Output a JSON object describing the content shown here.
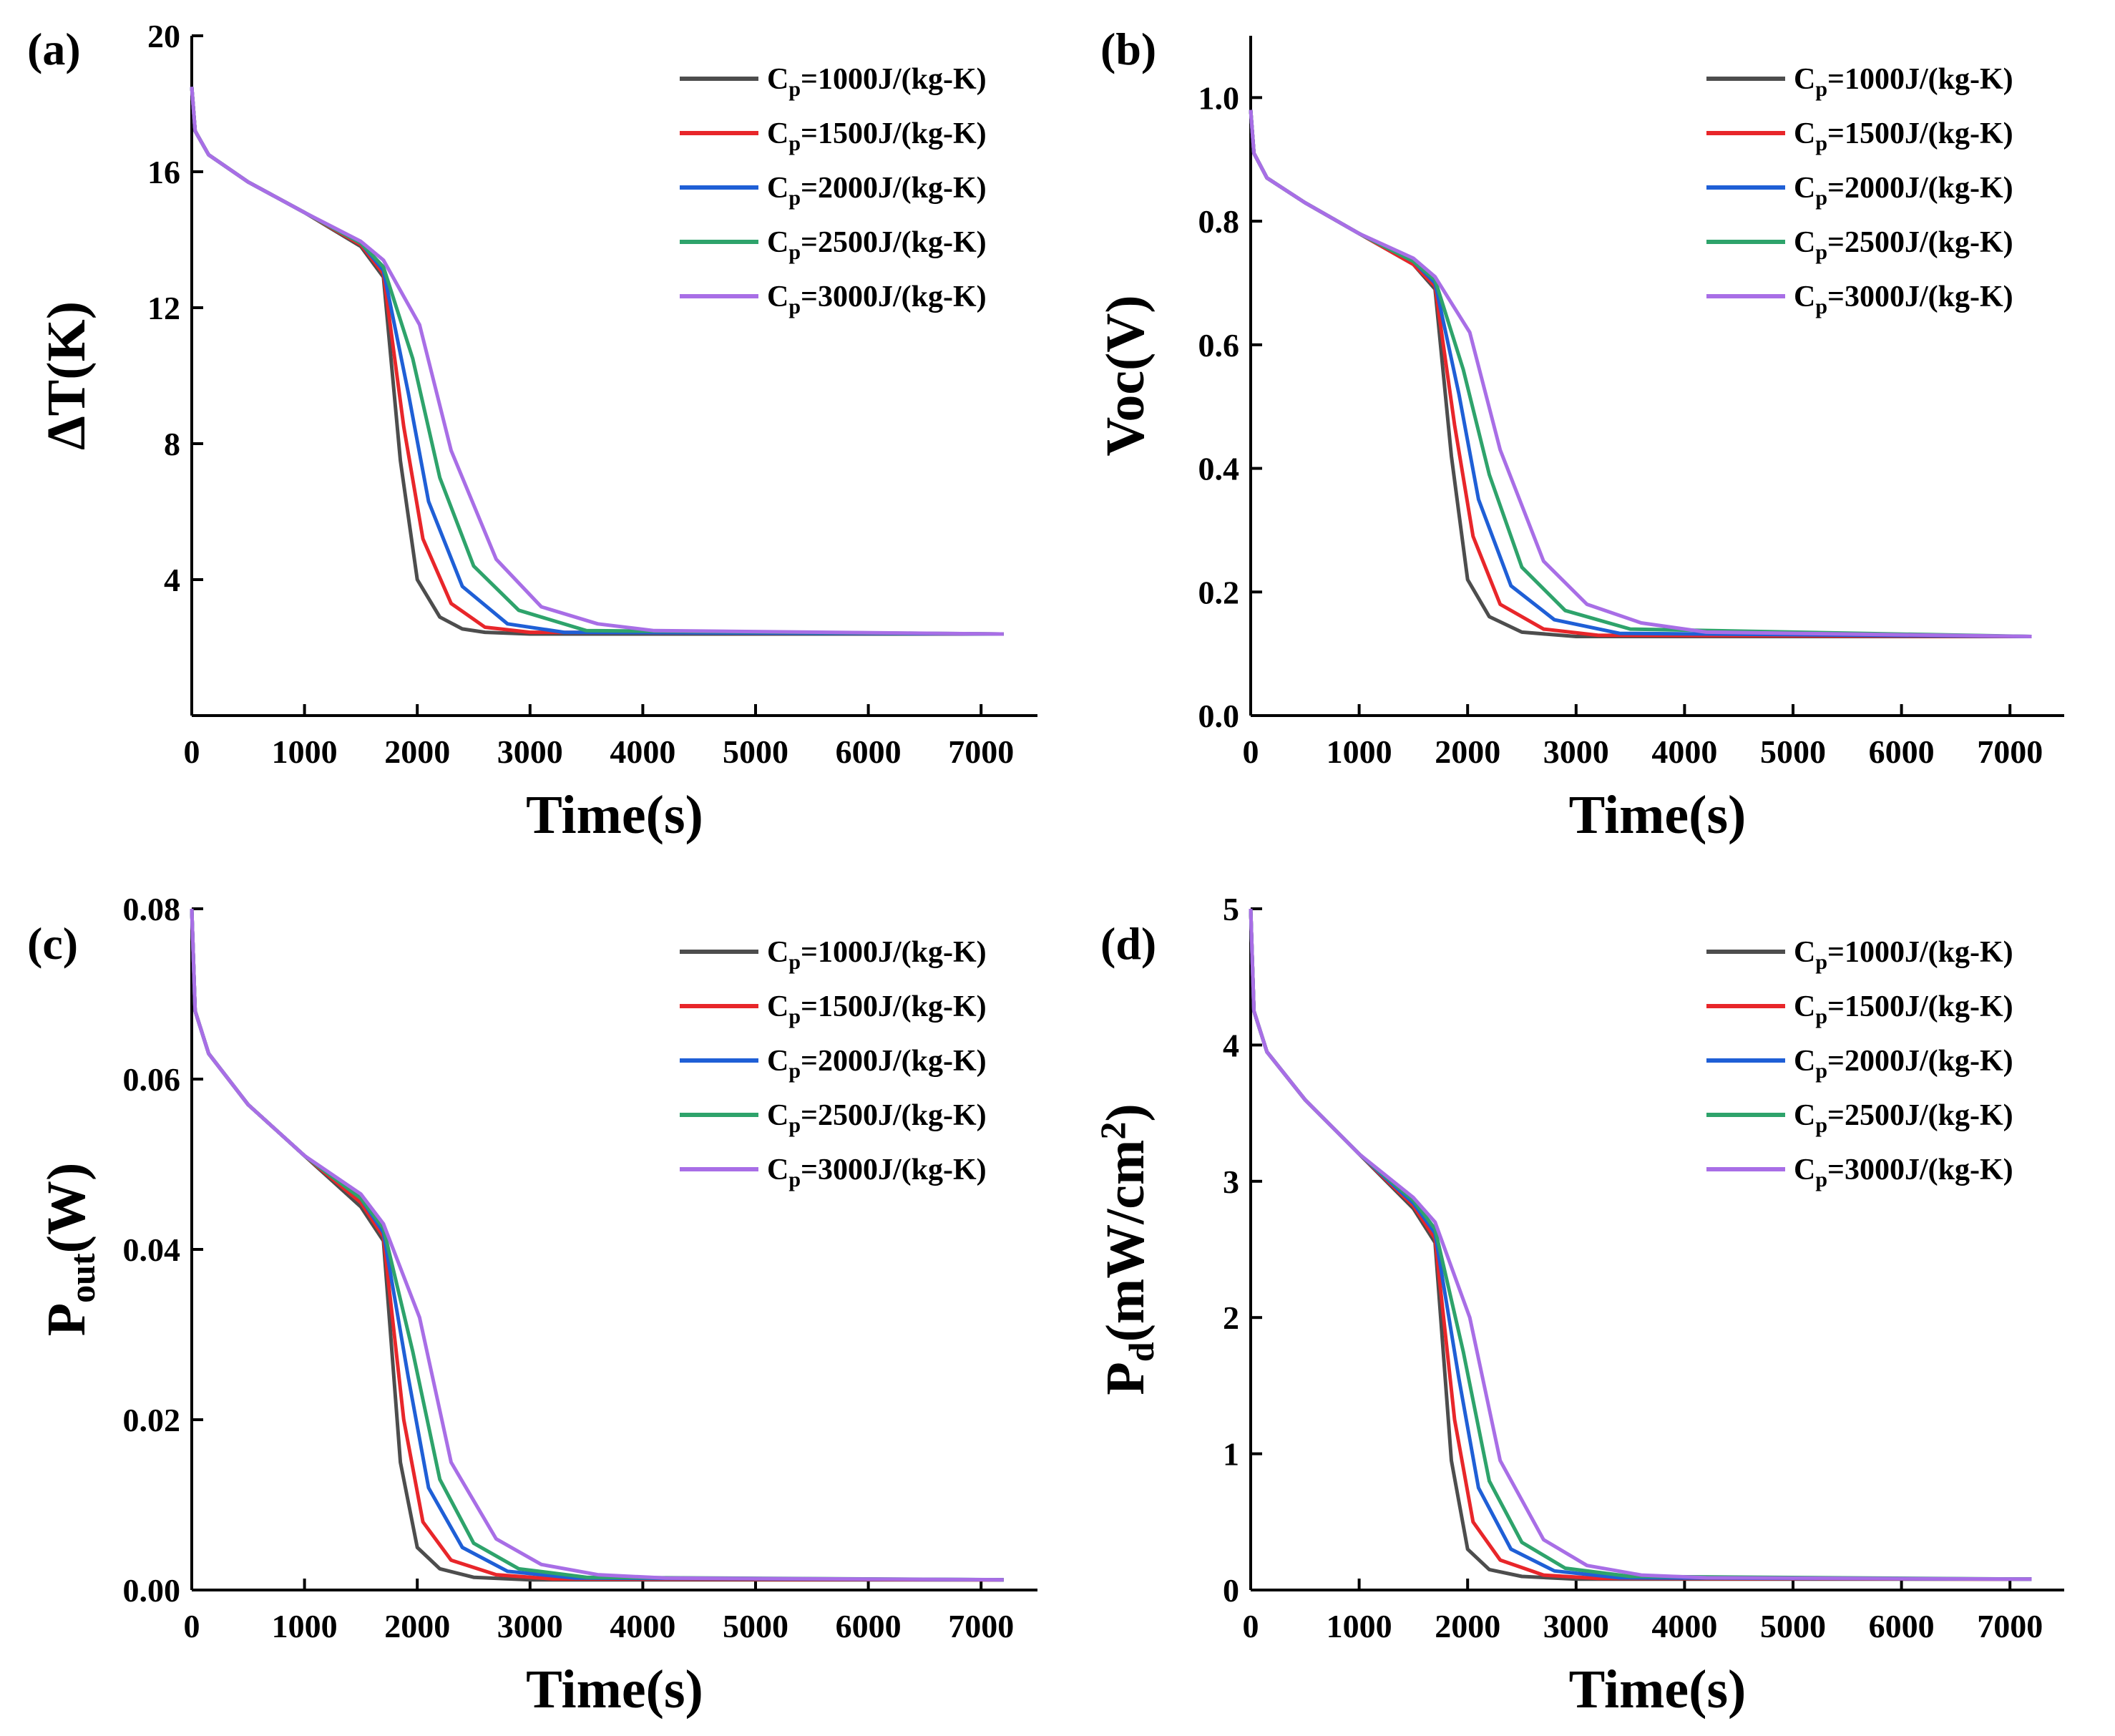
{
  "figure": {
    "panel_count": 4
  },
  "colors": {
    "axis": "#000000",
    "series": [
      "#4d4d4d",
      "#e8262a",
      "#1f5fd6",
      "#2ea36b",
      "#a86ee6"
    ]
  },
  "chart_data": [
    {
      "type": "line",
      "panel_label": "(a)",
      "title": "",
      "xlabel": "Time(s)",
      "ylabel": "ΔT(K)",
      "xlim": [
        0,
        7500
      ],
      "ylim": [
        0,
        20
      ],
      "xticks": [
        0,
        1000,
        2000,
        3000,
        4000,
        5000,
        6000,
        7000
      ],
      "yticks": [
        4,
        8,
        12,
        16,
        20
      ],
      "ytick_labels": [
        "4",
        "8",
        "12",
        "16",
        "20"
      ],
      "legend_position": "top-right",
      "x": [
        0,
        30,
        150,
        500,
        1000,
        1500,
        1700
      ],
      "series": [
        {
          "name": "Cp=1000J/(kg-K)",
          "legend_main": "C",
          "legend_sub": "p",
          "legend_rest": "=1000J/(kg-K)",
          "values": [
            18.5,
            17.2,
            16.5,
            15.7,
            14.8,
            13.8,
            12.9
          ],
          "tail": [
            [
              1850,
              7.5
            ],
            [
              2000,
              4.0
            ],
            [
              2200,
              2.9
            ],
            [
              2400,
              2.55
            ],
            [
              2600,
              2.45
            ],
            [
              3000,
              2.4
            ],
            [
              7200,
              2.4
            ]
          ]
        },
        {
          "name": "Cp=1500J/(kg-K)",
          "legend_main": "C",
          "legend_sub": "p",
          "legend_rest": "=1500J/(kg-K)",
          "values": [
            18.5,
            17.2,
            16.5,
            15.7,
            14.8,
            13.85,
            13.0
          ],
          "tail": [
            [
              1880,
              8.5
            ],
            [
              2050,
              5.2
            ],
            [
              2300,
              3.3
            ],
            [
              2600,
              2.6
            ],
            [
              3000,
              2.45
            ],
            [
              7200,
              2.4
            ]
          ]
        },
        {
          "name": "Cp=2000J/(kg-K)",
          "legend_main": "C",
          "legend_sub": "p",
          "legend_rest": "=2000J/(kg-K)",
          "values": [
            18.5,
            17.2,
            16.5,
            15.7,
            14.8,
            13.9,
            13.1
          ],
          "tail": [
            [
              1920,
              9.5
            ],
            [
              2100,
              6.3
            ],
            [
              2400,
              3.8
            ],
            [
              2800,
              2.7
            ],
            [
              3300,
              2.45
            ],
            [
              7200,
              2.4
            ]
          ]
        },
        {
          "name": "Cp=2500J/(kg-K)",
          "legend_main": "C",
          "legend_sub": "p",
          "legend_rest": "=2500J/(kg-K)",
          "values": [
            18.5,
            17.2,
            16.5,
            15.7,
            14.8,
            13.9,
            13.2
          ],
          "tail": [
            [
              1960,
              10.5
            ],
            [
              2200,
              7.0
            ],
            [
              2500,
              4.4
            ],
            [
              2900,
              3.1
            ],
            [
              3500,
              2.5
            ],
            [
              7200,
              2.4
            ]
          ]
        },
        {
          "name": "Cp=3000J/(kg-K)",
          "legend_main": "C",
          "legend_sub": "p",
          "legend_rest": "=3000J/(kg-K)",
          "values": [
            18.5,
            17.2,
            16.5,
            15.7,
            14.8,
            13.95,
            13.4
          ],
          "tail": [
            [
              2020,
              11.5
            ],
            [
              2300,
              7.8
            ],
            [
              2700,
              4.6
            ],
            [
              3100,
              3.2
            ],
            [
              3600,
              2.7
            ],
            [
              4100,
              2.5
            ],
            [
              7200,
              2.4
            ]
          ]
        }
      ]
    },
    {
      "type": "line",
      "panel_label": "(b)",
      "title": "",
      "xlabel": "Time(s)",
      "ylabel": "Voc(V)",
      "xlim": [
        0,
        7500
      ],
      "ylim": [
        0,
        1.1
      ],
      "xticks": [
        0,
        1000,
        2000,
        3000,
        4000,
        5000,
        6000,
        7000
      ],
      "yticks": [
        0.0,
        0.2,
        0.4,
        0.6,
        0.8,
        1.0
      ],
      "ytick_labels": [
        "0.0",
        "0.2",
        "0.4",
        "0.6",
        "0.8",
        "1.0"
      ],
      "legend_position": "top-right",
      "x": [
        0,
        30,
        150,
        500,
        1000,
        1500,
        1700
      ],
      "series": [
        {
          "name": "Cp=1000J/(kg-K)",
          "legend_main": "C",
          "legend_sub": "p",
          "legend_rest": "=1000J/(kg-K)",
          "values": [
            0.98,
            0.91,
            0.87,
            0.83,
            0.78,
            0.73,
            0.69
          ],
          "tail": [
            [
              1850,
              0.42
            ],
            [
              2000,
              0.22
            ],
            [
              2200,
              0.16
            ],
            [
              2500,
              0.135
            ],
            [
              3000,
              0.128
            ],
            [
              7200,
              0.128
            ]
          ]
        },
        {
          "name": "Cp=1500J/(kg-K)",
          "legend_main": "C",
          "legend_sub": "p",
          "legend_rest": "=1500J/(kg-K)",
          "values": [
            0.98,
            0.91,
            0.87,
            0.83,
            0.78,
            0.73,
            0.695
          ],
          "tail": [
            [
              1880,
              0.47
            ],
            [
              2050,
              0.29
            ],
            [
              2300,
              0.18
            ],
            [
              2700,
              0.14
            ],
            [
              3200,
              0.13
            ],
            [
              7200,
              0.128
            ]
          ]
        },
        {
          "name": "Cp=2000J/(kg-K)",
          "legend_main": "C",
          "legend_sub": "p",
          "legend_rest": "=2000J/(kg-K)",
          "values": [
            0.98,
            0.91,
            0.87,
            0.83,
            0.78,
            0.735,
            0.7
          ],
          "tail": [
            [
              1920,
              0.52
            ],
            [
              2100,
              0.35
            ],
            [
              2400,
              0.21
            ],
            [
              2800,
              0.155
            ],
            [
              3400,
              0.133
            ],
            [
              7200,
              0.128
            ]
          ]
        },
        {
          "name": "Cp=2500J/(kg-K)",
          "legend_main": "C",
          "legend_sub": "p",
          "legend_rest": "=2500J/(kg-K)",
          "values": [
            0.98,
            0.91,
            0.87,
            0.83,
            0.78,
            0.735,
            0.705
          ],
          "tail": [
            [
              1960,
              0.56
            ],
            [
              2200,
              0.39
            ],
            [
              2500,
              0.24
            ],
            [
              2900,
              0.17
            ],
            [
              3500,
              0.14
            ],
            [
              7200,
              0.128
            ]
          ]
        },
        {
          "name": "Cp=3000J/(kg-K)",
          "legend_main": "C",
          "legend_sub": "p",
          "legend_rest": "=3000J/(kg-K)",
          "values": [
            0.98,
            0.91,
            0.87,
            0.83,
            0.78,
            0.74,
            0.71
          ],
          "tail": [
            [
              2020,
              0.62
            ],
            [
              2300,
              0.43
            ],
            [
              2700,
              0.25
            ],
            [
              3100,
              0.18
            ],
            [
              3600,
              0.15
            ],
            [
              4200,
              0.135
            ],
            [
              7200,
              0.128
            ]
          ]
        }
      ]
    },
    {
      "type": "line",
      "panel_label": "(c)",
      "title": "",
      "xlabel": "Time(s)",
      "ylabel_main": "P",
      "ylabel_sub": "out",
      "ylabel_rest": "(W)",
      "xlim": [
        0,
        7500
      ],
      "ylim": [
        0,
        0.08
      ],
      "xticks": [
        0,
        1000,
        2000,
        3000,
        4000,
        5000,
        6000,
        7000
      ],
      "yticks": [
        0.0,
        0.02,
        0.04,
        0.06,
        0.08
      ],
      "ytick_labels": [
        "0.00",
        "0.02",
        "0.04",
        "0.06",
        "0.08"
      ],
      "legend_position": "top-right",
      "x": [
        0,
        30,
        150,
        500,
        1000,
        1500,
        1700
      ],
      "series": [
        {
          "name": "Cp=1000J/(kg-K)",
          "legend_main": "C",
          "legend_sub": "p",
          "legend_rest": "=1000J/(kg-K)",
          "values": [
            0.08,
            0.068,
            0.063,
            0.057,
            0.051,
            0.045,
            0.041
          ],
          "tail": [
            [
              1850,
              0.015
            ],
            [
              2000,
              0.005
            ],
            [
              2200,
              0.0025
            ],
            [
              2500,
              0.0015
            ],
            [
              3000,
              0.0012
            ],
            [
              7200,
              0.0012
            ]
          ]
        },
        {
          "name": "Cp=1500J/(kg-K)",
          "legend_main": "C",
          "legend_sub": "p",
          "legend_rest": "=1500J/(kg-K)",
          "values": [
            0.08,
            0.068,
            0.063,
            0.057,
            0.051,
            0.0455,
            0.0415
          ],
          "tail": [
            [
              1880,
              0.02
            ],
            [
              2050,
              0.008
            ],
            [
              2300,
              0.0035
            ],
            [
              2700,
              0.0018
            ],
            [
              3200,
              0.0013
            ],
            [
              7200,
              0.0012
            ]
          ]
        },
        {
          "name": "Cp=2000J/(kg-K)",
          "legend_main": "C",
          "legend_sub": "p",
          "legend_rest": "=2000J/(kg-K)",
          "values": [
            0.08,
            0.068,
            0.063,
            0.057,
            0.051,
            0.046,
            0.042
          ],
          "tail": [
            [
              1920,
              0.025
            ],
            [
              2100,
              0.012
            ],
            [
              2400,
              0.005
            ],
            [
              2800,
              0.0022
            ],
            [
              3400,
              0.0014
            ],
            [
              7200,
              0.0012
            ]
          ]
        },
        {
          "name": "Cp=2500J/(kg-K)",
          "legend_main": "C",
          "legend_sub": "p",
          "legend_rest": "=2500J/(kg-K)",
          "values": [
            0.08,
            0.068,
            0.063,
            0.057,
            0.051,
            0.046,
            0.0425
          ],
          "tail": [
            [
              1960,
              0.028
            ],
            [
              2200,
              0.013
            ],
            [
              2500,
              0.0055
            ],
            [
              2900,
              0.0025
            ],
            [
              3500,
              0.0015
            ],
            [
              7200,
              0.0012
            ]
          ]
        },
        {
          "name": "Cp=3000J/(kg-K)",
          "legend_main": "C",
          "legend_sub": "p",
          "legend_rest": "=3000J/(kg-K)",
          "values": [
            0.08,
            0.068,
            0.063,
            0.057,
            0.051,
            0.0465,
            0.043
          ],
          "tail": [
            [
              2020,
              0.032
            ],
            [
              2300,
              0.015
            ],
            [
              2700,
              0.006
            ],
            [
              3100,
              0.003
            ],
            [
              3600,
              0.0018
            ],
            [
              4200,
              0.0014
            ],
            [
              7200,
              0.0012
            ]
          ]
        }
      ]
    },
    {
      "type": "line",
      "panel_label": "(d)",
      "title": "",
      "xlabel": "Time(s)",
      "ylabel_main": "P",
      "ylabel_sub": "d",
      "ylabel_rest": "(mW/cm",
      "ylabel_sup": "2",
      "ylabel_close": ")",
      "xlim": [
        0,
        7500
      ],
      "ylim": [
        0,
        5
      ],
      "xticks": [
        0,
        1000,
        2000,
        3000,
        4000,
        5000,
        6000,
        7000
      ],
      "yticks": [
        0,
        1,
        2,
        3,
        4,
        5
      ],
      "ytick_labels": [
        "0",
        "1",
        "2",
        "3",
        "4",
        "5"
      ],
      "legend_position": "top-right",
      "x": [
        0,
        30,
        150,
        500,
        1000,
        1500,
        1700
      ],
      "series": [
        {
          "name": "Cp=1000J/(kg-K)",
          "legend_main": "C",
          "legend_sub": "p",
          "legend_rest": "=1000J/(kg-K)",
          "values": [
            5.0,
            4.25,
            3.95,
            3.6,
            3.2,
            2.8,
            2.55
          ],
          "tail": [
            [
              1850,
              0.95
            ],
            [
              2000,
              0.3
            ],
            [
              2200,
              0.15
            ],
            [
              2500,
              0.1
            ],
            [
              3000,
              0.08
            ],
            [
              7200,
              0.08
            ]
          ]
        },
        {
          "name": "Cp=1500J/(kg-K)",
          "legend_main": "C",
          "legend_sub": "p",
          "legend_rest": "=1500J/(kg-K)",
          "values": [
            5.0,
            4.25,
            3.95,
            3.6,
            3.2,
            2.82,
            2.58
          ],
          "tail": [
            [
              1880,
              1.25
            ],
            [
              2050,
              0.5
            ],
            [
              2300,
              0.22
            ],
            [
              2700,
              0.11
            ],
            [
              3200,
              0.085
            ],
            [
              7200,
              0.08
            ]
          ]
        },
        {
          "name": "Cp=2000J/(kg-K)",
          "legend_main": "C",
          "legend_sub": "p",
          "legend_rest": "=2000J/(kg-K)",
          "values": [
            5.0,
            4.25,
            3.95,
            3.6,
            3.2,
            2.84,
            2.62
          ],
          "tail": [
            [
              1920,
              1.55
            ],
            [
              2100,
              0.75
            ],
            [
              2400,
              0.3
            ],
            [
              2800,
              0.14
            ],
            [
              3400,
              0.09
            ],
            [
              7200,
              0.08
            ]
          ]
        },
        {
          "name": "Cp=2500J/(kg-K)",
          "legend_main": "C",
          "legend_sub": "p",
          "legend_rest": "=2500J/(kg-K)",
          "values": [
            5.0,
            4.25,
            3.95,
            3.6,
            3.2,
            2.86,
            2.65
          ],
          "tail": [
            [
              1960,
              1.75
            ],
            [
              2200,
              0.8
            ],
            [
              2500,
              0.35
            ],
            [
              2900,
              0.16
            ],
            [
              3500,
              0.1
            ],
            [
              7200,
              0.08
            ]
          ]
        },
        {
          "name": "Cp=3000J/(kg-K)",
          "legend_main": "C",
          "legend_sub": "p",
          "legend_rest": "=3000J/(kg-K)",
          "values": [
            5.0,
            4.25,
            3.95,
            3.6,
            3.2,
            2.88,
            2.7
          ],
          "tail": [
            [
              2020,
              2.0
            ],
            [
              2300,
              0.95
            ],
            [
              2700,
              0.37
            ],
            [
              3100,
              0.18
            ],
            [
              3600,
              0.11
            ],
            [
              4200,
              0.09
            ],
            [
              7200,
              0.08
            ]
          ]
        }
      ]
    }
  ]
}
